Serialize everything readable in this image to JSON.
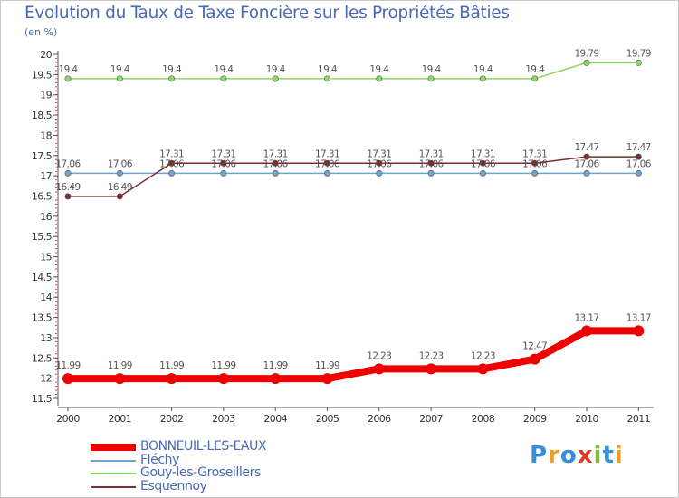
{
  "header": {
    "title": "Evolution du Taux de Taxe Foncière sur les Propriétés Bâties",
    "unit": "(en %)"
  },
  "logo": {
    "text": "Proxiti",
    "letters": [
      {
        "ch": "P",
        "color": "#3a8fd6"
      },
      {
        "ch": "r",
        "color": "#f0a020"
      },
      {
        "ch": "o",
        "color": "#3a8fd6"
      },
      {
        "ch": "x",
        "color": "#d93a2a"
      },
      {
        "ch": "i",
        "color": "#7bbf3a"
      },
      {
        "ch": "t",
        "color": "#3a8fd6"
      },
      {
        "ch": "i",
        "color": "#f0a020"
      }
    ]
  },
  "chart_data": {
    "type": "line",
    "title": "Evolution du Taux de Taxe Foncière sur les Propriétés Bâties",
    "ylabel": "(en %)",
    "xlabel": "",
    "x": [
      "2000",
      "2001",
      "2002",
      "2003",
      "2004",
      "2005",
      "2006",
      "2007",
      "2008",
      "2009",
      "2010",
      "2011"
    ],
    "ylim": [
      11.5,
      20
    ],
    "yticks": [
      "11.5",
      "12",
      "12.5",
      "13",
      "13.5",
      "14",
      "14.5",
      "15",
      "15.5",
      "16",
      "16.5",
      "17",
      "17.5",
      "18",
      "18.5",
      "19",
      "19.5",
      "20"
    ],
    "grid": false,
    "legend": "bottom-left",
    "series": [
      {
        "name": "BONNEUIL-LES-EAUX",
        "color": "#ee0000",
        "values": [
          11.99,
          11.99,
          11.99,
          11.99,
          11.99,
          11.99,
          12.23,
          12.23,
          12.23,
          12.47,
          13.17,
          13.17
        ],
        "labels": [
          "11.99",
          "11.99",
          "11.99",
          "11.99",
          "11.99",
          "11.99",
          "12.23",
          "12.23",
          "12.23",
          "12.47",
          "13.17",
          "13.17"
        ]
      },
      {
        "name": "Fléchy",
        "color": "#6fa4d0",
        "values": [
          17.06,
          17.06,
          17.06,
          17.06,
          17.06,
          17.06,
          17.06,
          17.06,
          17.06,
          17.06,
          17.06,
          17.06
        ],
        "labels": [
          "17.06",
          "17.06",
          "17.06",
          "17.06",
          "17.06",
          "17.06",
          "17.06",
          "17.06",
          "17.06",
          "17.06",
          "17.06",
          "17.06"
        ]
      },
      {
        "name": "Gouy-les-Groseillers",
        "color": "#8ed66a",
        "values": [
          19.4,
          19.4,
          19.4,
          19.4,
          19.4,
          19.4,
          19.4,
          19.4,
          19.4,
          19.4,
          19.79,
          19.79
        ],
        "labels": [
          "19.4",
          "19.4",
          "19.4",
          "19.4",
          "19.4",
          "19.4",
          "19.4",
          "19.4",
          "19.4",
          "19.4",
          "19.79",
          "19.79"
        ]
      },
      {
        "name": "Esquennoy",
        "color": "#7a2f30",
        "values": [
          16.49,
          16.49,
          17.31,
          17.31,
          17.31,
          17.31,
          17.31,
          17.31,
          17.31,
          17.31,
          17.47,
          17.47
        ],
        "labels": [
          "16.49",
          "16.49",
          "17.31",
          "17.31",
          "17.31",
          "17.31",
          "17.31",
          "17.31",
          "17.31",
          "17.31",
          "17.47",
          "17.47"
        ]
      }
    ]
  }
}
